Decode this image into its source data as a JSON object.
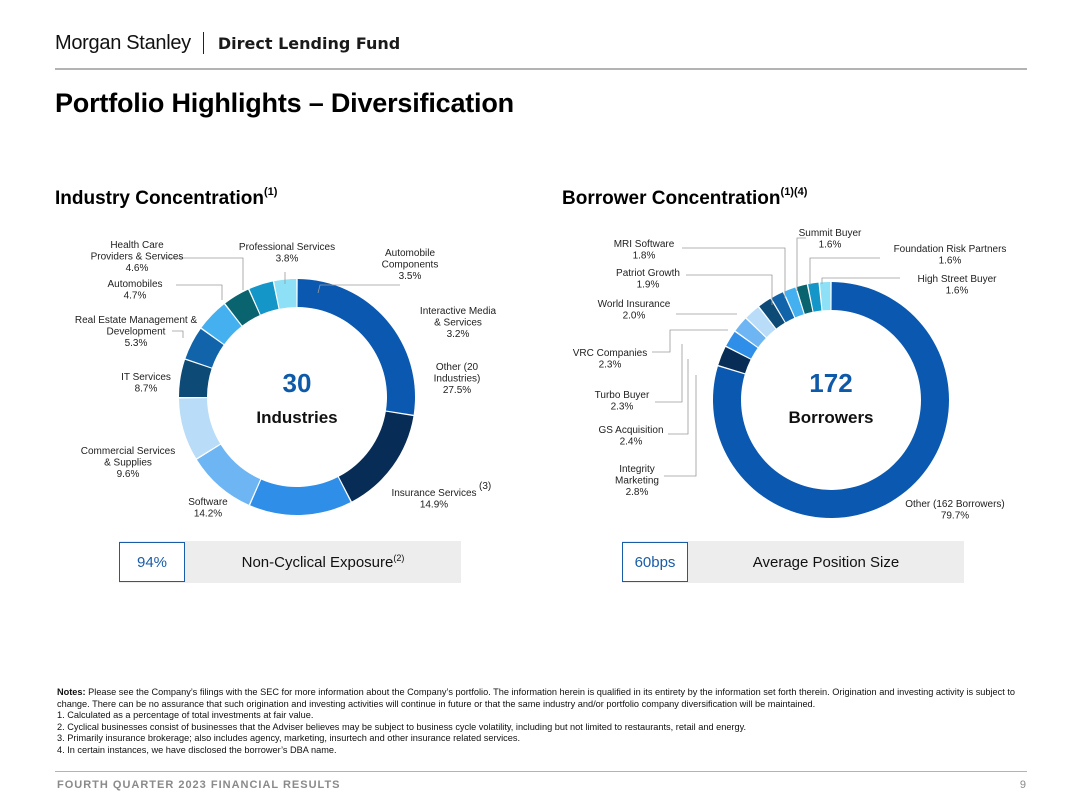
{
  "header": {
    "brand": "Morgan Stanley",
    "fund": "Direct Lending Fund"
  },
  "page": {
    "title": "Portfolio Highlights – Diversification"
  },
  "industry": {
    "title": "Industry Concentration",
    "title_sup": "(1)"
  },
  "borrower": {
    "title": "Borrower Concentration",
    "title_sup": "(1)(4)"
  },
  "chart_data": [
    {
      "type": "pie",
      "variant": "donut",
      "name": "Industry Concentration",
      "center_value": "30",
      "center_label": "Industries",
      "slices": [
        {
          "name": "Other (20 Industries)",
          "label_lines": [
            "Other (20",
            "Industries)",
            "27.5%"
          ],
          "value": 27.5,
          "color": "#0b58b0"
        },
        {
          "name": "Insurance Services",
          "label_lines": [
            "Insurance Services",
            "14.9%"
          ],
          "sup": "(3)",
          "value": 14.9,
          "color": "#072c56"
        },
        {
          "name": "Software",
          "label_lines": [
            "Software",
            "14.2%"
          ],
          "value": 14.2,
          "color": "#2f8fe8"
        },
        {
          "name": "Commercial Services & Supplies",
          "label_lines": [
            "Commercial Services",
            "& Supplies",
            "9.6%"
          ],
          "value": 9.6,
          "color": "#6db5f3"
        },
        {
          "name": "IT Services",
          "label_lines": [
            "IT Services",
            "8.7%"
          ],
          "value": 8.7,
          "color": "#b9dcf8"
        },
        {
          "name": "Real Estate Management & Development",
          "label_lines": [
            "Real Estate Management &",
            "Development",
            "5.3%"
          ],
          "value": 5.3,
          "color": "#0d4a75"
        },
        {
          "name": "Automobiles",
          "label_lines": [
            "Automobiles",
            "4.7%"
          ],
          "value": 4.7,
          "color": "#1264aa"
        },
        {
          "name": "Health Care Providers & Services",
          "label_lines": [
            "Health Care",
            "Providers & Services",
            "4.6%"
          ],
          "value": 4.6,
          "color": "#45b0f0"
        },
        {
          "name": "Professional Services",
          "label_lines": [
            "Professional Services",
            "3.8%"
          ],
          "value": 3.8,
          "color": "#0a6470"
        },
        {
          "name": "Automobile Components",
          "label_lines": [
            "Automobile",
            "Components",
            "3.5%"
          ],
          "value": 3.5,
          "color": "#1596c8"
        },
        {
          "name": "Interactive Media & Services",
          "label_lines": [
            "Interactive Media",
            "& Services",
            "3.2%"
          ],
          "value": 3.2,
          "color": "#8ee0f6"
        }
      ]
    },
    {
      "type": "pie",
      "variant": "donut",
      "name": "Borrower Concentration",
      "center_value": "172",
      "center_label": "Borrowers",
      "slices": [
        {
          "name": "Other (162 Borrowers)",
          "label_lines": [
            "Other (162 Borrowers)",
            "79.7%"
          ],
          "value": 79.7,
          "color": "#0b58b0"
        },
        {
          "name": "Integrity Marketing",
          "label_lines": [
            "Integrity",
            "Marketing",
            "2.8%"
          ],
          "value": 2.8,
          "color": "#072c56"
        },
        {
          "name": "GS Acquisition",
          "label_lines": [
            "GS Acquisition",
            "2.4%"
          ],
          "value": 2.4,
          "color": "#2f8fe8"
        },
        {
          "name": "Turbo Buyer",
          "label_lines": [
            "Turbo Buyer",
            "2.3%"
          ],
          "value": 2.3,
          "color": "#6db5f3"
        },
        {
          "name": "VRC Companies",
          "label_lines": [
            "VRC Companies",
            "2.3%"
          ],
          "value": 2.3,
          "color": "#b9dcf8"
        },
        {
          "name": "World Insurance",
          "label_lines": [
            "World Insurance",
            "2.0%"
          ],
          "value": 2.0,
          "color": "#0d4a75"
        },
        {
          "name": "Patriot Growth",
          "label_lines": [
            "Patriot Growth",
            "1.9%"
          ],
          "value": 1.9,
          "color": "#1264aa"
        },
        {
          "name": "MRI Software",
          "label_lines": [
            "MRI Software",
            "1.8%"
          ],
          "value": 1.8,
          "color": "#45b0f0"
        },
        {
          "name": "Summit Buyer",
          "label_lines": [
            "Summit Buyer",
            "1.6%"
          ],
          "value": 1.6,
          "color": "#0a6470"
        },
        {
          "name": "Foundation Risk Partners",
          "label_lines": [
            "Foundation Risk Partners",
            "1.6%"
          ],
          "value": 1.6,
          "color": "#1596c8"
        },
        {
          "name": "High Street Buyer",
          "label_lines": [
            "High Street Buyer",
            "1.6%"
          ],
          "value": 1.6,
          "color": "#8ee0f6"
        }
      ]
    }
  ],
  "callouts": {
    "left": {
      "value": "94%",
      "label": "Non-Cyclical Exposure",
      "sup": "(2)"
    },
    "right": {
      "value": "60bps",
      "label": "Average Position Size"
    }
  },
  "notes": {
    "lead": "Notes:",
    "intro": " Please see the Company’s filings with the SEC for more information about the Company’s portfolio. The information herein is qualified in its entirety by the information set forth therein. Origination and investing activity is subject to change. There can be no assurance that such origination and investing activities will continue in future or that the same industry and/or portfolio company diversification will be maintained.",
    "items": [
      "1.  Calculated as a percentage of total investments at fair value.",
      "2.  Cyclical businesses consist of businesses that the Adviser believes may be subject to business cycle volatility, including but not limited to restaurants, retail and energy.",
      "3.  Primarily insurance brokerage; also includes agency, marketing, insurtech and other insurance related services.",
      "4.  In certain instances, we have disclosed the borrower’s DBA name."
    ]
  },
  "footer": {
    "text": "FOURTH QUARTER 2023 FINANCIAL RESULTS",
    "page_number": "9"
  }
}
